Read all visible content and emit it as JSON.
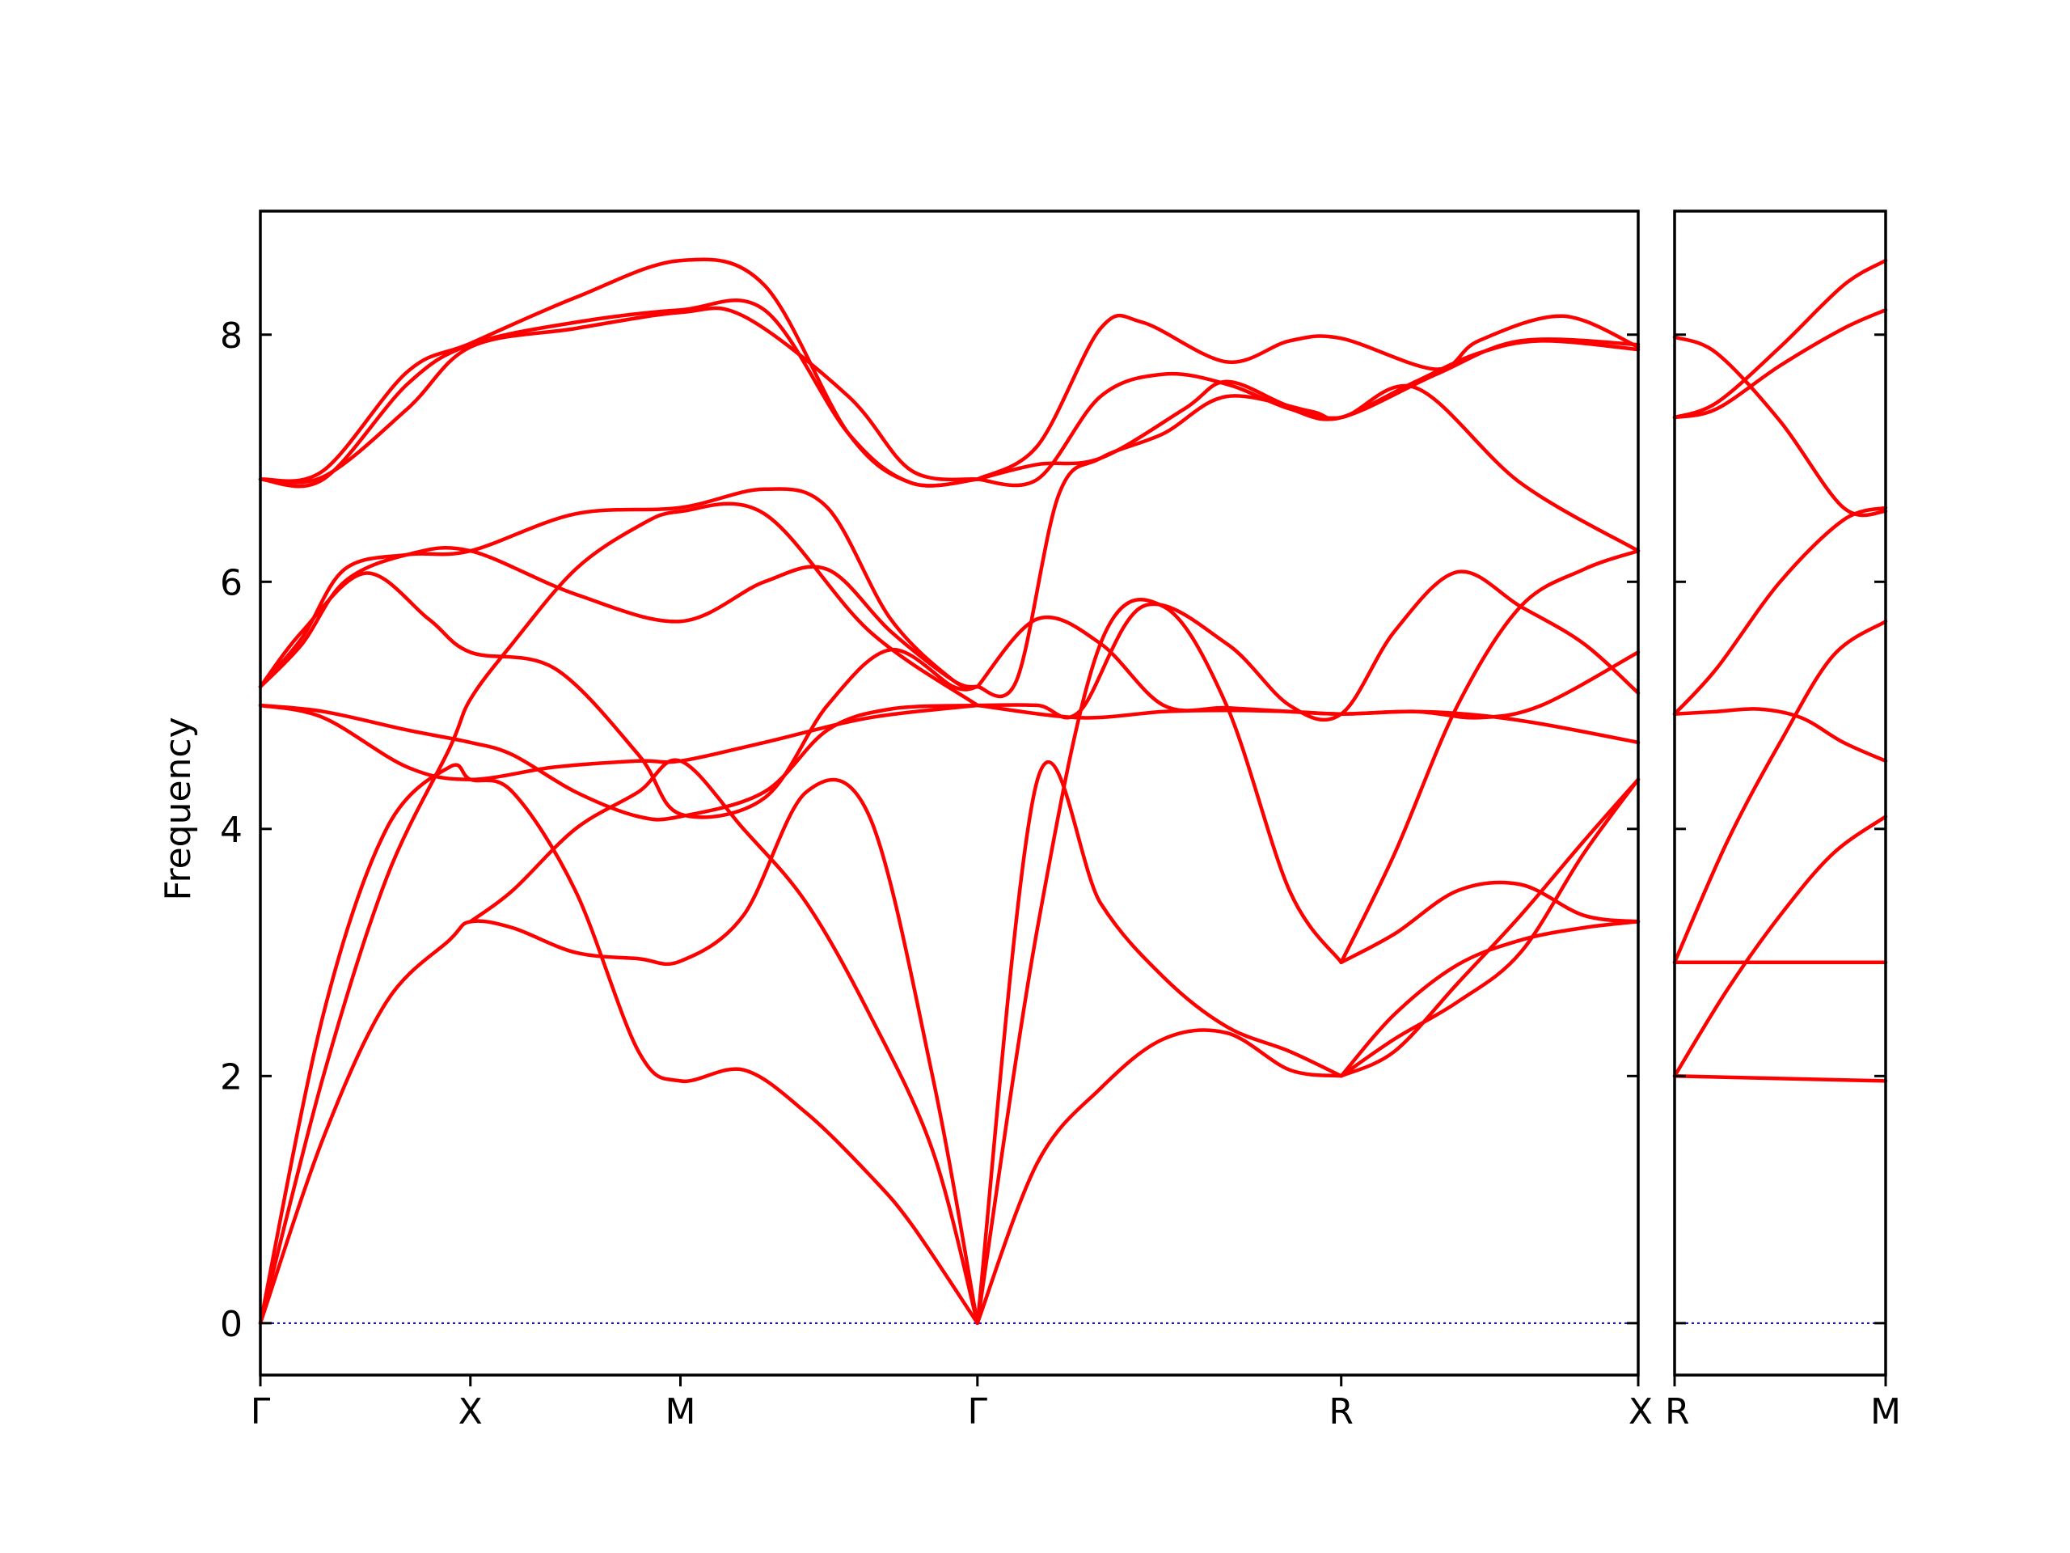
{
  "chart_data": [
    {
      "type": "line",
      "title": "",
      "ylabel": "Frequency",
      "xlabel": "",
      "ylim": [
        -0.42,
        9.0
      ],
      "yticks": [
        0,
        2,
        4,
        6,
        8
      ],
      "x_points": [
        {
          "label": "Γ",
          "x": 0.0
        },
        {
          "label": "X",
          "x": 0.5
        },
        {
          "label": "M",
          "x": 1.0
        },
        {
          "label": "Γ",
          "x": 1.707
        },
        {
          "label": "R",
          "x": 2.573
        },
        {
          "label": "X",
          "x": 3.28
        }
      ],
      "xlim": [
        0,
        3.28
      ],
      "grid": false,
      "line_color": "#ff0000",
      "zero_line_color": "#0000cc",
      "series": [
        {
          "x": [
            0,
            0.15,
            0.35,
            0.5,
            0.75,
            1.0,
            1.15,
            1.4,
            1.55,
            1.707
          ],
          "values": [
            6.83,
            6.85,
            7.4,
            7.9,
            8.05,
            8.18,
            8.15,
            7.5,
            6.9,
            6.83
          ]
        },
        {
          "x": [
            0,
            0.15,
            0.35,
            0.5,
            0.75,
            1.0,
            1.2,
            1.4,
            1.55,
            1.707
          ],
          "values": [
            6.83,
            6.83,
            7.6,
            7.92,
            8.1,
            8.2,
            8.2,
            7.2,
            6.8,
            6.83
          ]
        },
        {
          "x": [
            0,
            0.15,
            0.35,
            0.5,
            0.75,
            1.0,
            1.2,
            1.4,
            1.55,
            1.707
          ],
          "values": [
            6.83,
            6.9,
            7.7,
            7.93,
            8.3,
            8.6,
            8.4,
            7.2,
            6.8,
            6.83
          ]
        },
        {
          "x": [
            1.707,
            1.85,
            2.0,
            2.1,
            2.3,
            2.45,
            2.573,
            2.8,
            2.9,
            3.1,
            3.28
          ],
          "values": [
            6.83,
            7.1,
            8.05,
            8.1,
            7.78,
            7.95,
            7.97,
            7.72,
            7.95,
            8.15,
            7.9
          ]
        },
        {
          "x": [
            1.707,
            1.85,
            2.0,
            2.15,
            2.3,
            2.45,
            2.573,
            2.8,
            3.0,
            3.28
          ],
          "values": [
            6.83,
            6.83,
            7.5,
            7.68,
            7.6,
            7.4,
            7.33,
            7.68,
            7.95,
            7.92
          ]
        },
        {
          "x": [
            1.707,
            1.85,
            2.0,
            2.2,
            2.3,
            2.45,
            2.573,
            2.75,
            3.0,
            3.28
          ],
          "values": [
            6.83,
            6.95,
            7.0,
            7.4,
            7.62,
            7.42,
            7.33,
            7.57,
            6.8,
            6.25
          ]
        },
        {
          "x": [
            1.707,
            1.8,
            1.9,
            2.0,
            2.15,
            2.3,
            2.5,
            2.573,
            2.75,
            2.9,
            3.05,
            3.28
          ],
          "values": [
            5.15,
            5.2,
            6.7,
            7.0,
            7.2,
            7.5,
            7.38,
            7.33,
            7.62,
            7.85,
            7.95,
            7.88
          ]
        },
        {
          "x": [
            0,
            0.1,
            0.2,
            0.35,
            0.5,
            0.75,
            1.0,
            1.2,
            1.35,
            1.5,
            1.65,
            1.707
          ],
          "values": [
            5.15,
            5.55,
            6.1,
            6.22,
            6.25,
            6.55,
            6.6,
            6.75,
            6.6,
            5.7,
            5.2,
            5.15
          ]
        },
        {
          "x": [
            0,
            0.1,
            0.2,
            0.35,
            0.5,
            0.75,
            1.0,
            1.2,
            1.35,
            1.5,
            1.65,
            1.707
          ],
          "values": [
            5.15,
            5.5,
            6.0,
            6.22,
            6.25,
            5.9,
            5.68,
            6.0,
            6.1,
            5.6,
            5.2,
            5.15
          ]
        },
        {
          "x": [
            0,
            0.1,
            0.25,
            0.4,
            0.5,
            0.7,
            0.9,
            1.0,
            1.2,
            1.35,
            1.5,
            1.65,
            1.707
          ],
          "values": [
            5.15,
            5.6,
            6.07,
            5.7,
            5.43,
            5.3,
            4.6,
            4.12,
            4.25,
            5.0,
            5.45,
            5.15,
            5.15
          ]
        },
        {
          "x": [
            1.707,
            1.85,
            2.0,
            2.15,
            2.3,
            2.45,
            2.573,
            2.75,
            2.9,
            3.05,
            3.28
          ],
          "values": [
            5.15,
            5.7,
            5.5,
            5.0,
            4.98,
            4.95,
            4.93,
            4.95,
            4.9,
            5.0,
            5.43
          ]
        },
        {
          "x": [
            1.707,
            1.85,
            1.95,
            2.1,
            2.3,
            2.45,
            2.573,
            2.7,
            2.85,
            3.0,
            3.15,
            3.28
          ],
          "values": [
            5.0,
            5.0,
            4.95,
            5.8,
            5.5,
            5.0,
            4.93,
            5.6,
            6.08,
            5.8,
            5.5,
            5.1
          ]
        },
        {
          "x": [
            0,
            0.15,
            0.35,
            0.5,
            0.6,
            0.75,
            0.9,
            1.0,
            1.2,
            1.35,
            1.5,
            1.707
          ],
          "values": [
            5.0,
            4.95,
            4.8,
            4.7,
            4.6,
            4.3,
            4.1,
            4.1,
            4.3,
            4.8,
            4.97,
            5.0
          ]
        },
        {
          "x": [
            0,
            0.15,
            0.35,
            0.5,
            0.7,
            0.9,
            1.0,
            1.2,
            1.45,
            1.707
          ],
          "values": [
            5.0,
            4.9,
            4.5,
            4.4,
            4.5,
            4.55,
            4.55,
            4.7,
            4.9,
            5.0
          ]
        },
        {
          "x": [
            1.707,
            1.95,
            2.15,
            2.3,
            2.45,
            2.573,
            2.75,
            2.9,
            3.05,
            3.28
          ],
          "values": [
            5.0,
            4.9,
            4.95,
            4.96,
            4.95,
            4.93,
            4.95,
            4.92,
            4.85,
            4.7
          ]
        },
        {
          "x": [
            0,
            0.15,
            0.3,
            0.45,
            0.5,
            0.6,
            0.75,
            0.9,
            1.0,
            1.2,
            1.45,
            1.707
          ],
          "values": [
            0,
            2.0,
            3.6,
            4.65,
            5.05,
            5.5,
            6.1,
            6.45,
            6.57,
            6.55,
            5.6,
            5.0
          ]
        },
        {
          "x": [
            1.707,
            1.85,
            2.0,
            2.15,
            2.3,
            2.45,
            2.573
          ],
          "values": [
            0,
            3.2,
            5.5,
            5.8,
            5.0,
            3.5,
            2.92
          ]
        },
        {
          "x": [
            2.573,
            2.7,
            2.85,
            3.0,
            3.15,
            3.28
          ],
          "values": [
            2.92,
            3.8,
            5.0,
            5.8,
            6.1,
            6.25
          ]
        },
        {
          "x": [
            0,
            0.15,
            0.3,
            0.45,
            0.5,
            0.6,
            0.75,
            0.9,
            1.0,
            1.15,
            1.3,
            1.45,
            1.6,
            1.707
          ],
          "values": [
            0,
            1.5,
            2.6,
            3.1,
            3.25,
            3.2,
            3.0,
            2.95,
            2.93,
            3.3,
            4.3,
            4.1,
            2.0,
            0
          ]
        },
        {
          "x": [
            0,
            0.15,
            0.3,
            0.45,
            0.5,
            0.6,
            0.75,
            0.9,
            1.0,
            1.15,
            1.3,
            1.45,
            1.55,
            1.707
          ],
          "values": [
            0,
            2.5,
            4.0,
            4.5,
            4.4,
            4.3,
            3.5,
            2.2,
            1.96,
            2.05,
            1.7,
            1.2,
            0.8,
            0
          ]
        },
        {
          "x": [
            0.5,
            0.6,
            0.75,
            0.9,
            1.0,
            1.15,
            1.3,
            1.45,
            1.6,
            1.707
          ],
          "values": [
            3.25,
            3.5,
            4.0,
            4.3,
            4.55,
            4.0,
            3.4,
            2.5,
            1.4,
            0
          ]
        },
        {
          "x": [
            1.707,
            1.85,
            2.0,
            2.15,
            2.3,
            2.45,
            2.573
          ],
          "values": [
            0,
            4.4,
            3.4,
            2.8,
            2.4,
            2.2,
            2.0
          ]
        },
        {
          "x": [
            1.707,
            1.85,
            2.0,
            2.15,
            2.3,
            2.45,
            2.573
          ],
          "values": [
            0,
            1.3,
            1.9,
            2.3,
            2.35,
            2.05,
            2.0
          ]
        },
        {
          "x": [
            2.573,
            2.7,
            2.85,
            3.0,
            3.15,
            3.28
          ],
          "values": [
            2.92,
            3.15,
            3.5,
            3.55,
            3.3,
            3.25
          ]
        },
        {
          "x": [
            2.573,
            2.7,
            2.85,
            3.0,
            3.15,
            3.28
          ],
          "values": [
            2.0,
            2.3,
            2.6,
            3.0,
            3.8,
            4.4
          ]
        },
        {
          "x": [
            2.573,
            2.7,
            2.85,
            3.0,
            3.15,
            3.28
          ],
          "values": [
            2.0,
            2.2,
            2.75,
            3.3,
            3.9,
            4.4
          ]
        },
        {
          "x": [
            2.573,
            2.7,
            2.85,
            3.0,
            3.15,
            3.28
          ],
          "values": [
            2.0,
            2.5,
            2.9,
            3.1,
            3.2,
            3.25
          ]
        }
      ]
    },
    {
      "type": "line",
      "title": "",
      "ylabel": "",
      "xlabel": "",
      "ylim": [
        -0.42,
        9.0
      ],
      "yticks": [
        0,
        2,
        4,
        6,
        8
      ],
      "x_points": [
        {
          "label": "R",
          "x": 0.0
        },
        {
          "label": "M",
          "x": 1.0
        }
      ],
      "xlim": [
        0,
        1
      ],
      "grid": false,
      "line_color": "#ff0000",
      "zero_line_color": "#0000cc",
      "series": [
        {
          "x": [
            0,
            0.2,
            0.5,
            0.8,
            1.0
          ],
          "values": [
            7.98,
            7.85,
            7.3,
            6.6,
            6.57
          ]
        },
        {
          "x": [
            0,
            0.2,
            0.5,
            0.8,
            1.0
          ],
          "values": [
            7.33,
            7.45,
            7.9,
            8.4,
            8.6
          ]
        },
        {
          "x": [
            0,
            0.2,
            0.5,
            0.8,
            1.0
          ],
          "values": [
            7.33,
            7.4,
            7.75,
            8.05,
            8.2
          ]
        },
        {
          "x": [
            0,
            0.2,
            0.5,
            0.8,
            1.0
          ],
          "values": [
            4.93,
            5.3,
            6.0,
            6.5,
            6.6
          ]
        },
        {
          "x": [
            0,
            0.2,
            0.4,
            0.6,
            0.8,
            1.0
          ],
          "values": [
            4.93,
            4.95,
            4.97,
            4.9,
            4.7,
            4.55
          ]
        },
        {
          "x": [
            0,
            0.25,
            0.5,
            0.75,
            1.0
          ],
          "values": [
            2.92,
            3.9,
            4.7,
            5.4,
            5.68
          ]
        },
        {
          "x": [
            0,
            1.0
          ],
          "values": [
            2.92,
            2.92
          ]
        },
        {
          "x": [
            0,
            0.25,
            0.5,
            0.75,
            1.0
          ],
          "values": [
            2.0,
            2.7,
            3.3,
            3.8,
            4.1
          ]
        },
        {
          "x": [
            0,
            0.5,
            1.0
          ],
          "values": [
            2.0,
            1.98,
            1.96
          ]
        }
      ]
    }
  ]
}
